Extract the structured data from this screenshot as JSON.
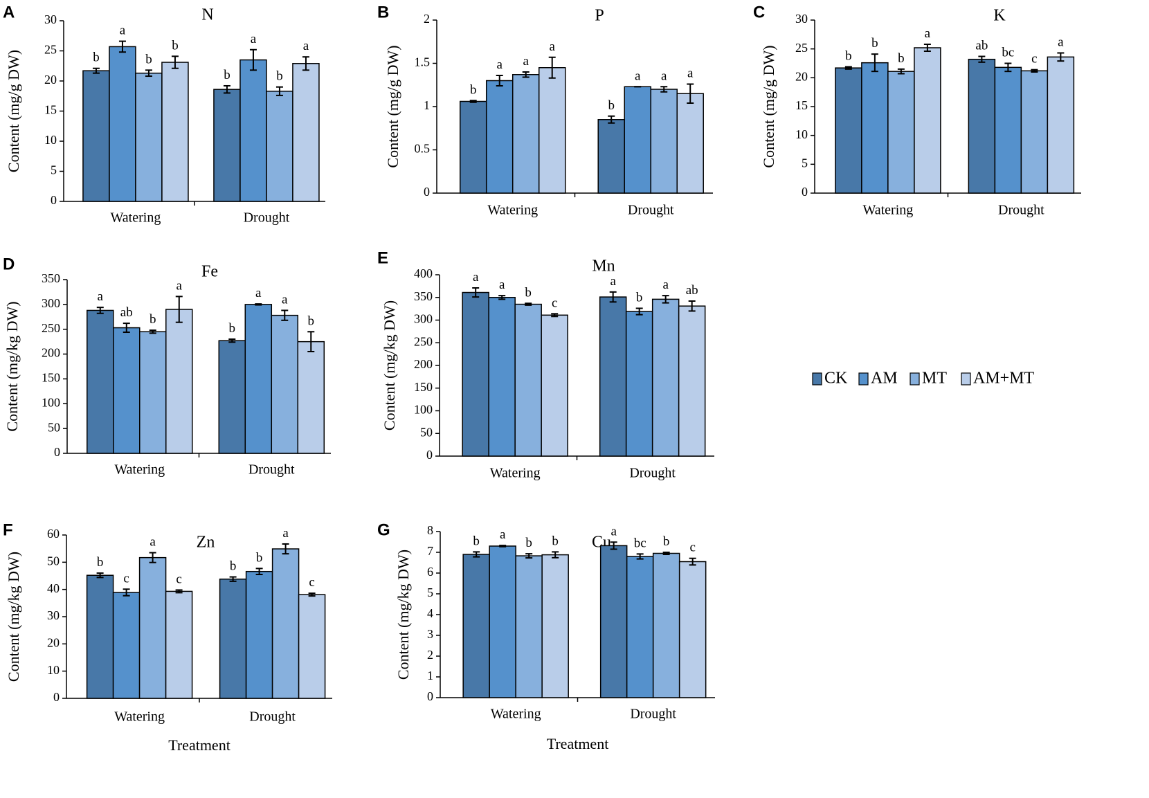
{
  "legend": [
    "CK",
    "AM",
    "MT",
    "AM+MT"
  ],
  "colors": [
    "#4878a8",
    "#5591cc",
    "#87b0dd",
    "#b9cde9"
  ],
  "x_axis_title": "Treatment",
  "chart_data": [
    {
      "type": "bar",
      "panel": "A",
      "title": "N",
      "ylabel": "Content (mg/g DW)",
      "ylim": [
        0,
        30
      ],
      "yticks": [
        0,
        5,
        10,
        15,
        20,
        25,
        30
      ],
      "categories": [
        "Watering",
        "Drought"
      ],
      "series": [
        {
          "name": "CK",
          "values": [
            21.7,
            18.6
          ],
          "errors": [
            0.4,
            0.6
          ],
          "letters": [
            "b",
            "b"
          ]
        },
        {
          "name": "AM",
          "values": [
            25.7,
            23.5
          ],
          "errors": [
            0.9,
            1.7
          ],
          "letters": [
            "a",
            "a"
          ]
        },
        {
          "name": "MT",
          "values": [
            21.3,
            18.3
          ],
          "errors": [
            0.5,
            0.7
          ],
          "letters": [
            "b",
            "b"
          ]
        },
        {
          "name": "AM+MT",
          "values": [
            23.1,
            22.9
          ],
          "errors": [
            1.0,
            1.1
          ],
          "letters": [
            "b",
            "a"
          ]
        }
      ],
      "xlabel": ""
    },
    {
      "type": "bar",
      "panel": "B",
      "title": "P",
      "ylabel": "Content (mg/g DW)",
      "ylim": [
        0,
        2
      ],
      "yticks": [
        "0",
        "0.5",
        "1",
        "1.5",
        "2"
      ],
      "categories": [
        "Watering",
        "Drought"
      ],
      "series": [
        {
          "name": "CK",
          "values": [
            1.06,
            0.85
          ],
          "errors": [
            0.01,
            0.04
          ],
          "letters": [
            "b",
            "b"
          ]
        },
        {
          "name": "AM",
          "values": [
            1.3,
            1.23
          ],
          "errors": [
            0.06,
            0.0
          ],
          "letters": [
            "a",
            "a"
          ]
        },
        {
          "name": "MT",
          "values": [
            1.37,
            1.2
          ],
          "errors": [
            0.03,
            0.03
          ],
          "letters": [
            "a",
            "a"
          ]
        },
        {
          "name": "AM+MT",
          "values": [
            1.45,
            1.15
          ],
          "errors": [
            0.12,
            0.11
          ],
          "letters": [
            "a",
            "a"
          ]
        }
      ],
      "xlabel": ""
    },
    {
      "type": "bar",
      "panel": "C",
      "title": "K",
      "ylabel": "Content (mg/g DW)",
      "ylim": [
        0,
        30
      ],
      "yticks": [
        0,
        5,
        10,
        15,
        20,
        25,
        30
      ],
      "categories": [
        "Watering",
        "Drought"
      ],
      "series": [
        {
          "name": "CK",
          "values": [
            21.7,
            23.2
          ],
          "errors": [
            0.2,
            0.5
          ],
          "letters": [
            "b",
            "ab"
          ]
        },
        {
          "name": "AM",
          "values": [
            22.6,
            21.8
          ],
          "errors": [
            1.5,
            0.7
          ],
          "letters": [
            "b",
            "bc"
          ]
        },
        {
          "name": "MT",
          "values": [
            21.1,
            21.2
          ],
          "errors": [
            0.4,
            0.2
          ],
          "letters": [
            "b",
            "c"
          ]
        },
        {
          "name": "AM+MT",
          "values": [
            25.2,
            23.6
          ],
          "errors": [
            0.6,
            0.7
          ],
          "letters": [
            "a",
            "a"
          ]
        }
      ],
      "xlabel": ""
    },
    {
      "type": "bar",
      "panel": "D",
      "title": "Fe",
      "ylabel": "Content (mg/kg DW)",
      "ylim": [
        0,
        350
      ],
      "yticks": [
        0,
        50,
        100,
        150,
        200,
        250,
        300,
        350
      ],
      "categories": [
        "Watering",
        "Drought"
      ],
      "series": [
        {
          "name": "CK",
          "values": [
            288,
            227
          ],
          "errors": [
            6,
            3
          ],
          "letters": [
            "a",
            "b"
          ]
        },
        {
          "name": "AM",
          "values": [
            253,
            300
          ],
          "errors": [
            9,
            1
          ],
          "letters": [
            "ab",
            "a"
          ]
        },
        {
          "name": "MT",
          "values": [
            245,
            278
          ],
          "errors": [
            3,
            10
          ],
          "letters": [
            "b",
            "a"
          ]
        },
        {
          "name": "AM+MT",
          "values": [
            290,
            225
          ],
          "errors": [
            26,
            20
          ],
          "letters": [
            "a",
            "b"
          ]
        }
      ],
      "xlabel": ""
    },
    {
      "type": "bar",
      "panel": "E",
      "title": "Mn",
      "ylabel": "Content (mg/kg DW)",
      "ylim": [
        0,
        400
      ],
      "yticks": [
        0,
        50,
        100,
        150,
        200,
        250,
        300,
        350,
        400
      ],
      "categories": [
        "Watering",
        "Drought"
      ],
      "series": [
        {
          "name": "CK",
          "values": [
            361,
            351
          ],
          "errors": [
            10,
            11
          ],
          "letters": [
            "a",
            "a"
          ]
        },
        {
          "name": "AM",
          "values": [
            350,
            319
          ],
          "errors": [
            4,
            7
          ],
          "letters": [
            "a",
            "b"
          ]
        },
        {
          "name": "MT",
          "values": [
            335,
            346
          ],
          "errors": [
            2,
            8
          ],
          "letters": [
            "b",
            "a"
          ]
        },
        {
          "name": "AM+MT",
          "values": [
            311,
            331
          ],
          "errors": [
            3,
            11
          ],
          "letters": [
            "c",
            "ab"
          ]
        }
      ],
      "xlabel": ""
    },
    {
      "type": "bar",
      "panel": "F",
      "title": "Zn",
      "ylabel": "Content (mg/kg DW)",
      "ylim": [
        0,
        60
      ],
      "yticks": [
        0,
        10,
        20,
        30,
        40,
        50,
        60
      ],
      "categories": [
        "Watering",
        "Drought"
      ],
      "series": [
        {
          "name": "CK",
          "values": [
            45.2,
            43.8
          ],
          "errors": [
            0.8,
            0.8
          ],
          "letters": [
            "b",
            "b"
          ]
        },
        {
          "name": "AM",
          "values": [
            38.9,
            46.6
          ],
          "errors": [
            1.2,
            1.1
          ],
          "letters": [
            "c",
            "b"
          ]
        },
        {
          "name": "MT",
          "values": [
            51.7,
            54.9
          ],
          "errors": [
            1.8,
            1.8
          ],
          "letters": [
            "a",
            "a"
          ]
        },
        {
          "name": "AM+MT",
          "values": [
            39.3,
            38.1
          ],
          "errors": [
            0.5,
            0.5
          ],
          "letters": [
            "c",
            "c"
          ]
        }
      ],
      "xlabel": "Treatment"
    },
    {
      "type": "bar",
      "panel": "G",
      "title": "Cu",
      "ylabel": "Content (mg/kg DW)",
      "ylim": [
        0,
        8
      ],
      "yticks": [
        0,
        1,
        2,
        3,
        4,
        5,
        6,
        7,
        8
      ],
      "categories": [
        "Watering",
        "Drought"
      ],
      "series": [
        {
          "name": "CK",
          "values": [
            6.9,
            7.32
          ],
          "errors": [
            0.12,
            0.17
          ],
          "letters": [
            "b",
            "a"
          ]
        },
        {
          "name": "AM",
          "values": [
            7.3,
            6.8
          ],
          "errors": [
            0.03,
            0.12
          ],
          "letters": [
            "a",
            "bc"
          ]
        },
        {
          "name": "MT",
          "values": [
            6.83,
            6.95
          ],
          "errors": [
            0.1,
            0.05
          ],
          "letters": [
            "b",
            "b"
          ]
        },
        {
          "name": "AM+MT",
          "values": [
            6.88,
            6.55
          ],
          "errors": [
            0.14,
            0.16
          ],
          "letters": [
            "b",
            "c"
          ]
        }
      ],
      "xlabel": "Treatment"
    }
  ]
}
